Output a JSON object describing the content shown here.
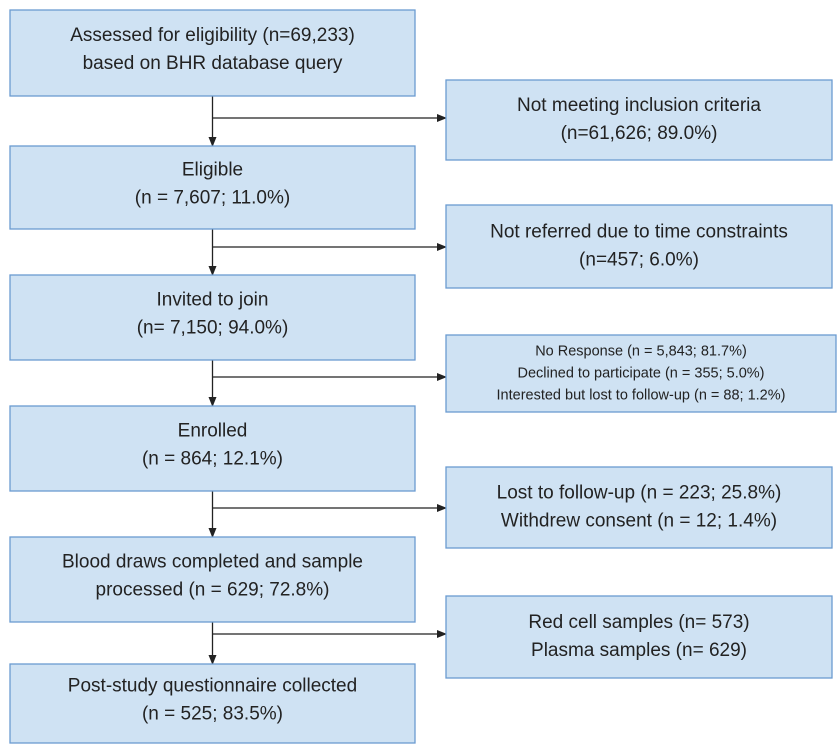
{
  "main_steps": [
    {
      "lines": [
        "Assessed for eligibility (n=69,233)",
        "based on BHR database query"
      ]
    },
    {
      "lines": [
        "Eligible",
        "(n = 7,607; 11.0%)"
      ]
    },
    {
      "lines": [
        "Invited to join",
        "(n= 7,150; 94.0%)"
      ]
    },
    {
      "lines": [
        "Enrolled",
        "(n = 864; 12.1%)"
      ]
    },
    {
      "lines": [
        "Blood draws completed and sample",
        "processed (n = 629; 72.8%)"
      ]
    },
    {
      "lines": [
        "Post-study questionnaire collected",
        "(n = 525; 83.5%)"
      ]
    }
  ],
  "side_boxes": [
    {
      "lines": [
        "Not meeting inclusion criteria",
        "(n=61,626; 89.0%)"
      ]
    },
    {
      "lines": [
        "Not referred due to time constraints",
        "(n=457; 6.0%)"
      ]
    },
    {
      "lines": [
        "No Response (n = 5,843; 81.7%)",
        "Declined to participate (n = 355; 5.0%)",
        "Interested but lost to follow-up (n = 88; 1.2%)"
      ]
    },
    {
      "lines": [
        "Lost to follow-up (n = 223; 25.8%)",
        "Withdrew consent (n = 12; 1.4%)"
      ]
    },
    {
      "lines": [
        "Red cell samples (n= 573)",
        "Plasma samples (n= 629)"
      ]
    }
  ]
}
